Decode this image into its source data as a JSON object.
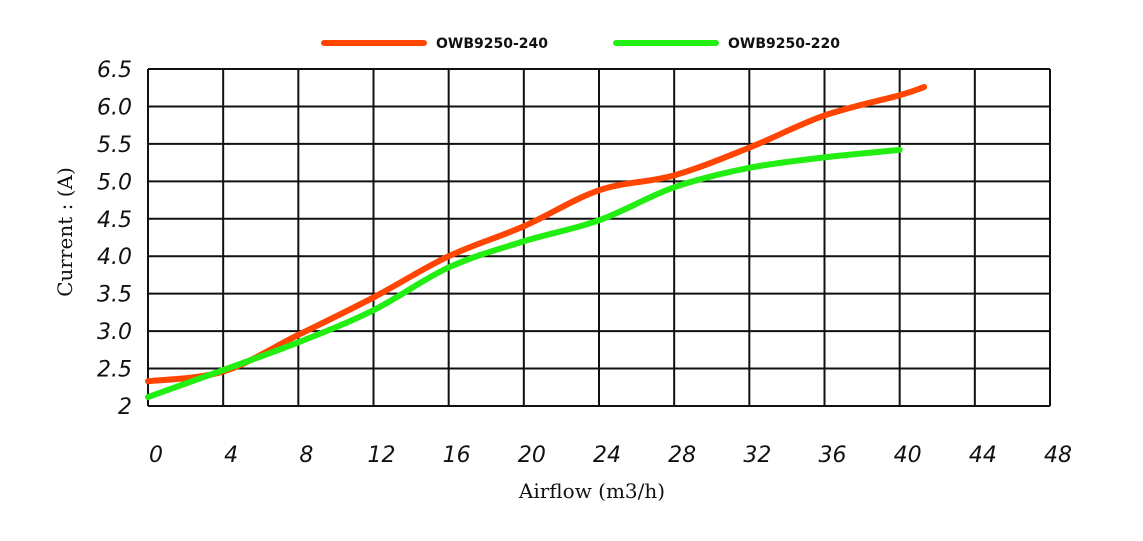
{
  "chart_data": {
    "type": "line",
    "title": "",
    "xlabel": "Airflow (m3/h)",
    "ylabel": "Current : (A)",
    "xlim": [
      0,
      48
    ],
    "ylim": [
      2,
      6.5
    ],
    "grid": true,
    "legend_position": "top",
    "x_ticks": [
      "0",
      "4",
      "8",
      "12",
      "16",
      "20",
      "24",
      "28",
      "32",
      "36",
      "40",
      "44",
      "48"
    ],
    "y_ticks": [
      "2",
      "2.5",
      "3.0",
      "3.5",
      "4.0",
      "4.5",
      "5.0",
      "5.5",
      "6.0",
      "6.5"
    ],
    "series": [
      {
        "name": "OWB9250-240",
        "color": "#ff4500",
        "x": [
          0,
          4,
          8,
          12,
          16,
          20,
          24,
          28,
          32,
          36,
          40,
          41.3
        ],
        "y": [
          2.33,
          2.46,
          2.95,
          3.45,
          4.0,
          4.4,
          4.88,
          5.08,
          5.45,
          5.88,
          6.15,
          6.26
        ]
      },
      {
        "name": "OWB9250-220",
        "color": "#22ee11",
        "x": [
          0,
          4,
          8,
          12,
          16,
          20,
          24,
          28,
          32,
          36,
          40
        ],
        "y": [
          2.12,
          2.48,
          2.85,
          3.28,
          3.85,
          4.2,
          4.48,
          4.92,
          5.18,
          5.32,
          5.42
        ]
      }
    ]
  }
}
